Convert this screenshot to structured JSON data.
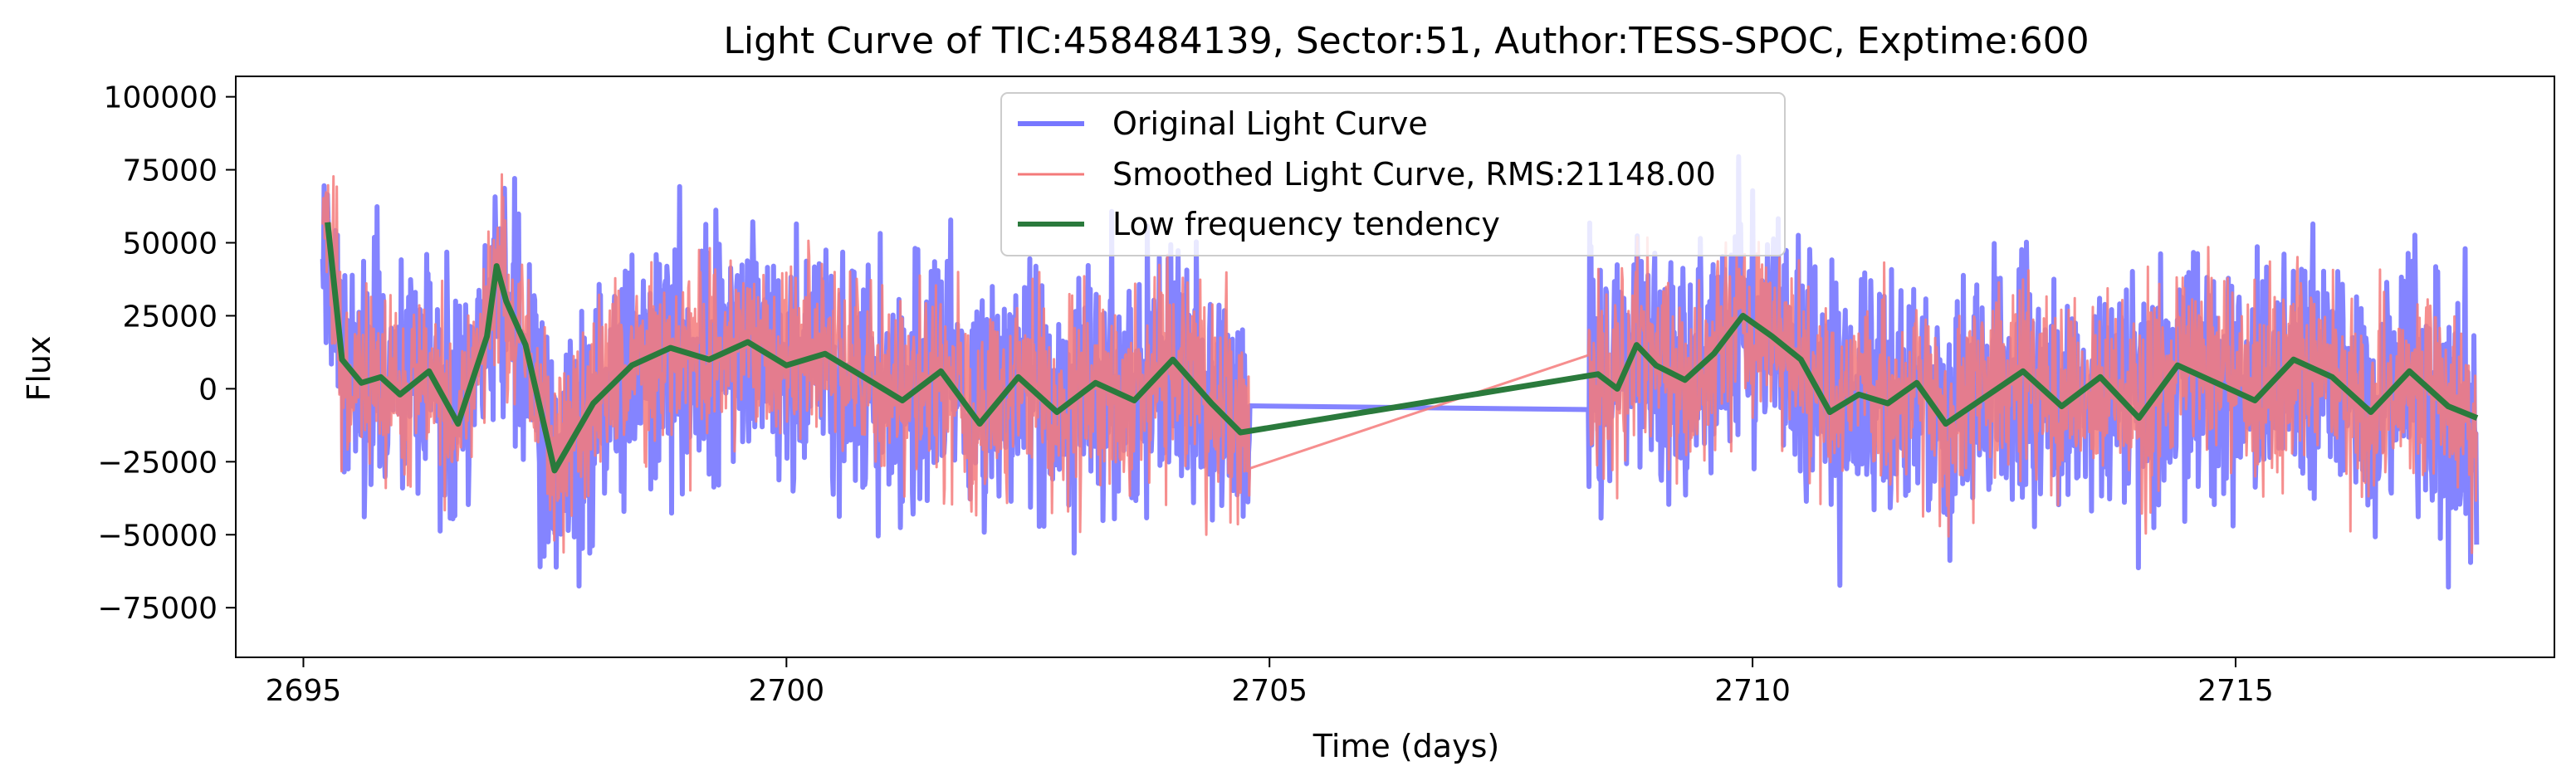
{
  "chart_data": {
    "type": "line",
    "title": "Light Curve of TIC:458484139, Sector:51, Author:TESS-SPOC, Exptime:600",
    "xlabel": "Time (days)",
    "ylabel": "Flux",
    "xlim": [
      2694.3,
      2718.3
    ],
    "ylim": [
      -92000,
      107000
    ],
    "xticks": [
      2695,
      2700,
      2705,
      2710,
      2715
    ],
    "xtick_labels": [
      "2695",
      "2700",
      "2705",
      "2710",
      "2715"
    ],
    "yticks": [
      100000,
      75000,
      50000,
      25000,
      0,
      -25000,
      -50000,
      -75000
    ],
    "ytick_labels": [
      "100000",
      "75000",
      "50000",
      "25000",
      "0",
      "−25000",
      "−50000",
      "−75000"
    ],
    "grid": false,
    "legend_position": "upper center",
    "segments": [
      [
        2695.2,
        2704.8
      ],
      [
        2708.3,
        2717.5
      ]
    ],
    "series": [
      {
        "name": "Original Light Curve",
        "color": "#7777ff",
        "style": "noisy",
        "amplitude": 32000
      },
      {
        "name": "Smoothed Light Curve, RMS:21148.00",
        "color": "#f47a7a",
        "style": "noisy",
        "amplitude": 26000
      },
      {
        "name": "Low frequency tendency",
        "color": "#2a7a3c",
        "style": "trend",
        "x": [
          2695.25,
          2695.4,
          2695.6,
          2695.8,
          2696.0,
          2696.3,
          2696.6,
          2696.9,
          2697.0,
          2697.1,
          2697.3,
          2697.6,
          2698.0,
          2698.4,
          2698.8,
          2699.2,
          2699.6,
          2700.0,
          2700.4,
          2700.8,
          2701.2,
          2701.6,
          2702.0,
          2702.4,
          2702.8,
          2703.2,
          2703.6,
          2704.0,
          2704.4,
          2704.7,
          2708.4,
          2708.6,
          2708.8,
          2709.0,
          2709.3,
          2709.6,
          2709.9,
          2710.2,
          2710.5,
          2710.8,
          2711.1,
          2711.4,
          2711.7,
          2712.0,
          2712.4,
          2712.8,
          2713.2,
          2713.6,
          2714.0,
          2714.4,
          2714.8,
          2715.2,
          2715.6,
          2716.0,
          2716.4,
          2716.8,
          2717.2,
          2717.5
        ],
        "y": [
          57000,
          10000,
          2000,
          4000,
          -2000,
          6000,
          -12000,
          18000,
          42000,
          30000,
          15000,
          -28000,
          -5000,
          8000,
          14000,
          10000,
          16000,
          8000,
          12000,
          4000,
          -4000,
          6000,
          -12000,
          4000,
          -8000,
          2000,
          -4000,
          10000,
          -5000,
          -15000,
          5000,
          0,
          15000,
          8000,
          3000,
          12000,
          25000,
          18000,
          10000,
          -8000,
          -2000,
          -5000,
          2000,
          -12000,
          -3000,
          6000,
          -6000,
          4000,
          -10000,
          8000,
          2000,
          -4000,
          10000,
          4000,
          -8000,
          6000,
          -6000,
          -10000
        ]
      }
    ]
  }
}
